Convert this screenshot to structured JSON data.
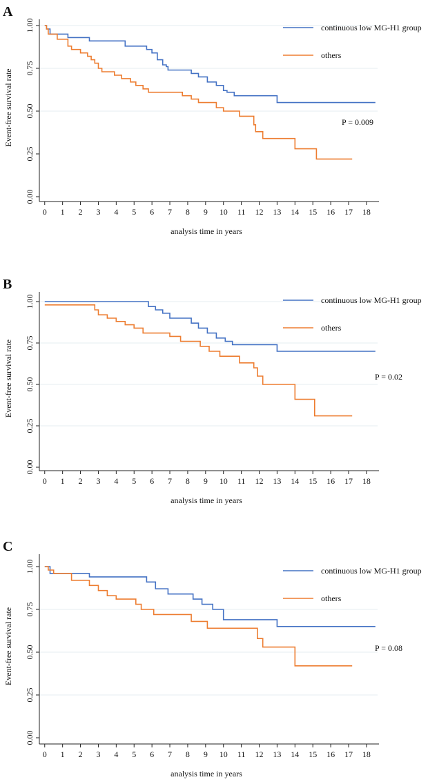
{
  "chart_data": [
    {
      "type": "line",
      "panel_label": "A",
      "xlabel": "analysis time in years",
      "ylabel": "Event-free survival rate",
      "xlim": [
        -0.3,
        18.7
      ],
      "ylim": [
        -0.07,
        1.02
      ],
      "xticks": [
        "0",
        "1",
        "2",
        "3",
        "4",
        "5",
        "6",
        "7",
        "8",
        "9",
        "10",
        "11",
        "12",
        "13",
        "14",
        "15",
        "16",
        "17",
        "18"
      ],
      "yticks": [
        "0.00",
        "0.25",
        "0.50",
        "0.75",
        "1.00"
      ],
      "grid_values": [
        0.5,
        0.75,
        1.0
      ],
      "annotation": "P = 0.009",
      "series": [
        {
          "name": "continuous low MG-H1 group",
          "color": "#4472c4",
          "x": [
            0,
            0.1,
            0.3,
            1.3,
            2.5,
            4.5,
            5.7,
            6.0,
            6.3,
            6.6,
            6.8,
            6.9,
            8.2,
            8.6,
            9.1,
            9.6,
            10.0,
            10.2,
            10.6,
            11.0,
            13.0,
            18.5
          ],
          "y": [
            1.0,
            0.98,
            0.95,
            0.93,
            0.91,
            0.88,
            0.86,
            0.84,
            0.8,
            0.77,
            0.76,
            0.74,
            0.72,
            0.7,
            0.67,
            0.65,
            0.62,
            0.61,
            0.59,
            0.59,
            0.55,
            0.55
          ]
        },
        {
          "name": "others",
          "color": "#ed7d31",
          "x": [
            0,
            0.1,
            0.2,
            0.7,
            1.3,
            1.5,
            2.0,
            2.4,
            2.6,
            2.8,
            3.0,
            3.2,
            3.9,
            4.3,
            4.8,
            5.1,
            5.5,
            5.8,
            7.7,
            8.2,
            8.6,
            9.6,
            10.0,
            10.9,
            11.7,
            11.8,
            12.2,
            14.0,
            15.2,
            17.2
          ],
          "y": [
            1.0,
            0.98,
            0.95,
            0.92,
            0.88,
            0.86,
            0.84,
            0.82,
            0.8,
            0.78,
            0.75,
            0.73,
            0.71,
            0.69,
            0.67,
            0.65,
            0.63,
            0.61,
            0.59,
            0.57,
            0.55,
            0.52,
            0.5,
            0.47,
            0.42,
            0.38,
            0.34,
            0.28,
            0.22,
            0.22
          ]
        }
      ]
    },
    {
      "type": "line",
      "panel_label": "B",
      "xlabel": "analysis time in years",
      "ylabel": "Event-free survival rate",
      "xlim": [
        -0.3,
        18.7
      ],
      "ylim": [
        -0.07,
        1.02
      ],
      "xticks": [
        "0",
        "1",
        "2",
        "3",
        "4",
        "5",
        "6",
        "7",
        "8",
        "9",
        "10",
        "11",
        "12",
        "13",
        "14",
        "15",
        "16",
        "17",
        "18"
      ],
      "yticks": [
        "0.00",
        "0.25",
        "0.50",
        "0.75",
        "1.00"
      ],
      "grid_values": [
        0.25,
        0.5,
        0.75,
        1.0
      ],
      "annotation": "P = 0.02",
      "series": [
        {
          "name": "continuous low MG-H1 group",
          "color": "#4472c4",
          "x": [
            0,
            5.8,
            6.2,
            6.6,
            7.0,
            8.2,
            8.6,
            9.1,
            9.6,
            10.1,
            10.5,
            13.0,
            18.5
          ],
          "y": [
            1.0,
            0.97,
            0.95,
            0.93,
            0.9,
            0.87,
            0.84,
            0.81,
            0.78,
            0.76,
            0.74,
            0.7,
            0.7
          ],
          "endpoint": 18.5
        },
        {
          "name": "others",
          "color": "#ed7d31",
          "x": [
            0,
            1.5,
            2.8,
            3.0,
            3.5,
            4.0,
            4.5,
            5.0,
            5.5,
            7.0,
            7.6,
            8.7,
            9.2,
            9.8,
            10.9,
            11.7,
            11.9,
            12.2,
            14.0,
            15.1,
            17.2
          ],
          "y": [
            0.98,
            0.98,
            0.95,
            0.92,
            0.9,
            0.88,
            0.86,
            0.84,
            0.81,
            0.79,
            0.76,
            0.73,
            0.7,
            0.67,
            0.63,
            0.6,
            0.55,
            0.5,
            0.41,
            0.31,
            0.31
          ]
        }
      ]
    },
    {
      "type": "line",
      "panel_label": "C",
      "xlabel": "analysis time in years",
      "ylabel": "Event-free survival rate",
      "xlim": [
        -0.3,
        18.7
      ],
      "ylim": [
        -0.07,
        1.02
      ],
      "xticks": [
        "0",
        "1",
        "2",
        "3",
        "4",
        "5",
        "6",
        "7",
        "8",
        "9",
        "10",
        "11",
        "12",
        "13",
        "14",
        "15",
        "16",
        "17",
        "18"
      ],
      "yticks": [
        "0.00",
        "0.25",
        "0.50",
        "0.75",
        "1.00"
      ],
      "grid_values": [
        0.25,
        0.5,
        0.75
      ],
      "annotation": "P = 0.08",
      "series": [
        {
          "name": "continuous low MG-H1 group",
          "color": "#4472c4",
          "x": [
            0,
            0.3,
            2.5,
            5.7,
            6.2,
            6.9,
            8.3,
            8.8,
            9.4,
            10.0,
            13.0,
            18.5
          ],
          "y": [
            1.0,
            0.96,
            0.94,
            0.91,
            0.87,
            0.84,
            0.81,
            0.78,
            0.75,
            0.69,
            0.65,
            0.65
          ]
        },
        {
          "name": "others",
          "color": "#ed7d31",
          "x": [
            0,
            0.2,
            0.5,
            1.5,
            2.5,
            3.0,
            3.5,
            4.0,
            5.1,
            5.4,
            6.1,
            8.2,
            9.1,
            11.9,
            12.2,
            14.0,
            17.2
          ],
          "y": [
            1.0,
            0.98,
            0.96,
            0.92,
            0.89,
            0.86,
            0.83,
            0.81,
            0.78,
            0.75,
            0.72,
            0.68,
            0.64,
            0.58,
            0.53,
            0.42,
            0.42
          ]
        }
      ]
    }
  ]
}
